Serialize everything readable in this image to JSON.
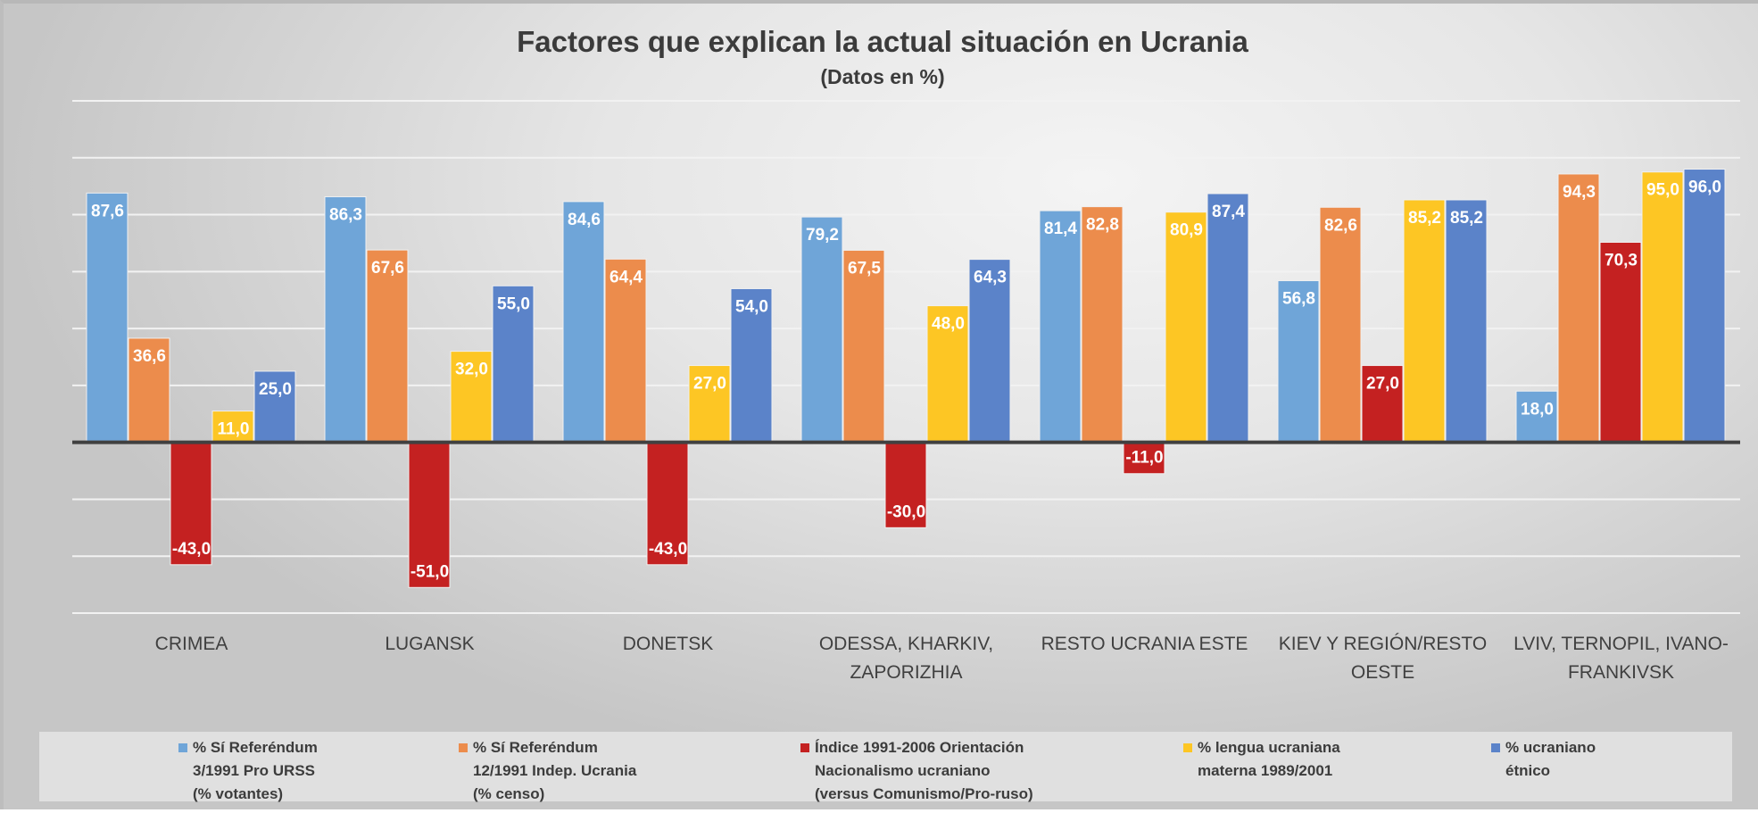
{
  "chart_data": {
    "type": "bar",
    "title": "Factores que explican la actual situación en Ucrania",
    "subtitle": "(Datos en %)",
    "xlabel": "",
    "ylabel": "",
    "ylim": [
      -60,
      120
    ],
    "grid_step": 20,
    "grid": true,
    "legend_position": "bottom",
    "categories": [
      [
        "CRIMEA"
      ],
      [
        "LUGANSK"
      ],
      [
        "DONETSK"
      ],
      [
        "ODESSA, KHARKIV,",
        "ZAPORIZHIA"
      ],
      [
        "RESTO UCRANIA ESTE"
      ],
      [
        "KIEV Y REGIÓN/RESTO",
        "OESTE"
      ],
      [
        "LVIV, TERNOPIL, IVANO-",
        "FRANKIVSK"
      ]
    ],
    "series": [
      {
        "name": "% Sí Referéndum 3/1991 Pro URSS (% votantes)",
        "legend_lines": [
          "% Sí Referéndum",
          "3/1991 Pro URSS",
          "(% votantes)"
        ],
        "color": "#6fa5d8",
        "values": [
          87.6,
          86.3,
          84.6,
          79.2,
          81.4,
          56.8,
          18.0
        ],
        "labels": [
          "87,6",
          "86,3",
          "84,6",
          "79,2",
          "81,4",
          "56,8",
          "18,0"
        ]
      },
      {
        "name": "% Sí Referéndum 12/1991 Indep. Ucrania (% censo)",
        "legend_lines": [
          "% Sí Referéndum",
          "12/1991 Indep. Ucrania",
          "(% censo)"
        ],
        "color": "#ec8c4c",
        "values": [
          36.6,
          67.6,
          64.4,
          67.5,
          82.8,
          82.6,
          94.3
        ],
        "labels": [
          "36,6",
          "67,6",
          "64,4",
          "67,5",
          "82,8",
          "82,6",
          "94,3"
        ]
      },
      {
        "name": "Índice 1991-2006 Orientación Nacionalismo ucraniano (versus Comunismo/Pro-ruso)",
        "legend_lines": [
          "Índice 1991-2006 Orientación",
          "Nacionalismo ucraniano",
          "(versus Comunismo/Pro-ruso)"
        ],
        "color": "#c42121",
        "values": [
          -43.0,
          -51.0,
          -43.0,
          -30.0,
          -11.0,
          27.0,
          70.3
        ],
        "labels": [
          "-43,0",
          "-51,0",
          "-43,0",
          "-30,0",
          "-11,0",
          "27,0",
          "70,3"
        ]
      },
      {
        "name": "% lengua ucraniana materna 1989/2001",
        "legend_lines": [
          "% lengua ucraniana",
          "materna 1989/2001"
        ],
        "color": "#fdc624",
        "values": [
          11.0,
          32.0,
          27.0,
          48.0,
          80.9,
          85.2,
          95.0
        ],
        "labels": [
          "11,0",
          "32,0",
          "27,0",
          "48,0",
          "80,9",
          "85,2",
          "95,0"
        ]
      },
      {
        "name": "% ucraniano étnico",
        "legend_lines": [
          "% ucraniano",
          "étnico"
        ],
        "color": "#5b83c9",
        "values": [
          25.0,
          55.0,
          54.0,
          64.3,
          87.4,
          85.2,
          96.0
        ],
        "labels": [
          "25,0",
          "55,0",
          "54,0",
          "64,3",
          "87,4",
          "85,2",
          "96,0"
        ]
      }
    ]
  }
}
